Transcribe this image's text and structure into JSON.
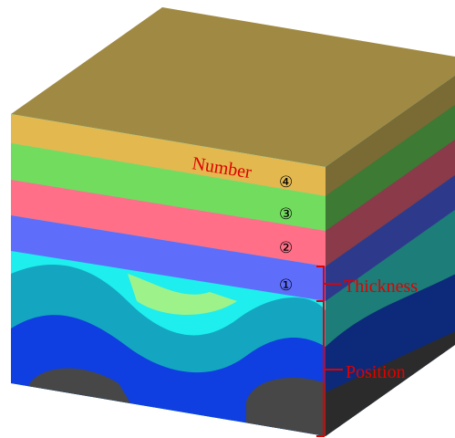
{
  "number_label": "Number",
  "layers": [
    {
      "label": "④"
    },
    {
      "label": "③"
    },
    {
      "label": "②"
    },
    {
      "label": "①"
    }
  ],
  "annotations": {
    "thickness": "Thickness",
    "position": "Position"
  }
}
